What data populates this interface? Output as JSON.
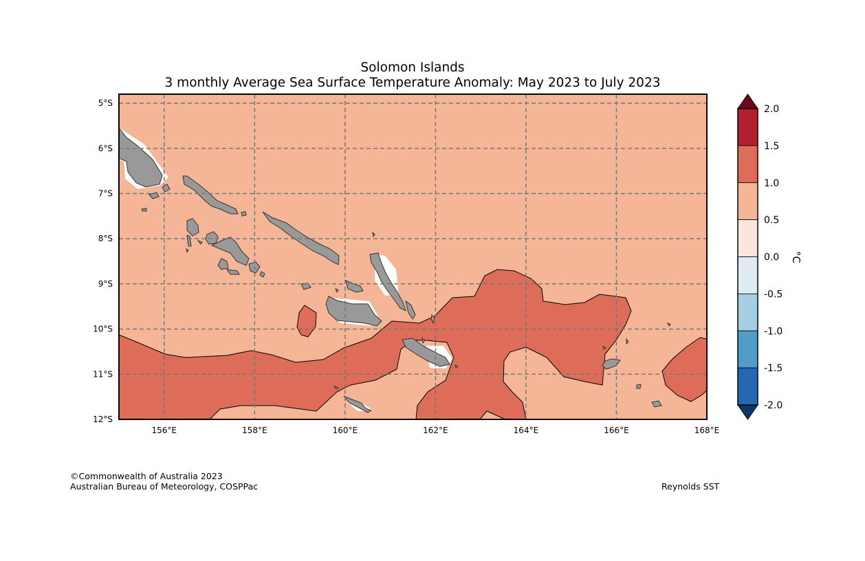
{
  "title": {
    "line1": "Solomon Islands",
    "line2": "3 monthly Average Sea Surface Temperature Anomaly: May 2023 to July 2023"
  },
  "map": {
    "lon_range": [
      155,
      168
    ],
    "lat_range": [
      -12,
      -4.8
    ],
    "lon_ticks": [
      "156°E",
      "158°E",
      "160°E",
      "162°E",
      "164°E",
      "166°E",
      "168°E"
    ],
    "lat_ticks": [
      "5°S",
      "6°S",
      "7°S",
      "8°S",
      "9°S",
      "10°S",
      "11°S",
      "12°S"
    ],
    "gridlines": "dashed",
    "background_anomaly_band": "0.5 to 1.0",
    "warm_region_band": "1.0 to 1.5",
    "land_color": "#999999"
  },
  "colorbar": {
    "unit": "°C",
    "ticks": [
      "2.0",
      "1.5",
      "1.0",
      "0.5",
      "0.0",
      "-0.5",
      "-1.0",
      "-1.5",
      "-2.0"
    ],
    "colors_top_to_bottom": [
      "#b2202f",
      "#dd6c58",
      "#f5b697",
      "#fae6dc",
      "#deebf3",
      "#a5cee3",
      "#529dc8",
      "#2368b0"
    ],
    "extend_max_color": "#6e0320",
    "extend_min_color": "#0c3568"
  },
  "footer": {
    "copyright": "©Commonwealth of Australia 2023",
    "org": "Australian Bureau of Meteorology, COSPPac",
    "source": "Reynolds SST"
  }
}
